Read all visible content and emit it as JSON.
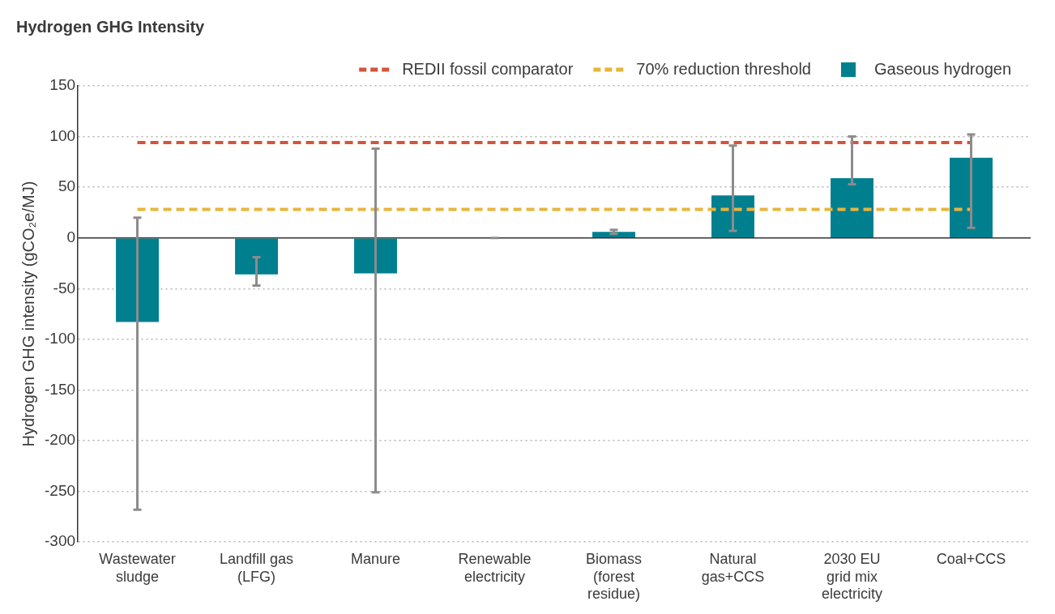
{
  "chart_data": {
    "type": "bar",
    "title": "Hydrogen GHG Intensity",
    "y_label": "Hydrogen GHG intensity (gCO₂e/MJ)",
    "categories": [
      [
        "Wastewater",
        "sludge"
      ],
      [
        "Landfill gas",
        "(LFG)"
      ],
      [
        "Manure"
      ],
      [
        "Renewable",
        "electricity"
      ],
      [
        "Biomass",
        "(forest",
        "residue)"
      ],
      [
        "Natural",
        "gas+CCS"
      ],
      [
        "2030 EU",
        "grid mix",
        "electricity"
      ],
      [
        "Coal+CCS"
      ]
    ],
    "series": [
      {
        "name": "Gaseous hydrogen",
        "type": "bar",
        "color": "#007f8f",
        "values": [
          -83,
          -36,
          -35,
          0,
          6,
          42,
          59,
          79
        ],
        "error_low": [
          -268,
          -47,
          -251,
          0,
          4,
          7,
          53,
          10
        ],
        "error_high": [
          20,
          -19,
          88,
          0,
          8,
          91,
          100,
          102
        ]
      },
      {
        "name": "REDII fossil comparator",
        "type": "line",
        "color": "#d4553a",
        "line_style": "dashed",
        "values": [
          94,
          94,
          94,
          94,
          94,
          94,
          94,
          94
        ]
      },
      {
        "name": "70% reduction threshold",
        "type": "line",
        "color": "#e8b53c",
        "line_style": "dashed",
        "values": [
          28.2,
          28.2,
          28.2,
          28.2,
          28.2,
          28.2,
          28.2,
          28.2
        ]
      }
    ],
    "ylim": [
      -300,
      150
    ],
    "yticks": [
      -300,
      -250,
      -200,
      -150,
      -100,
      -50,
      0,
      50,
      100,
      150
    ],
    "grid": true,
    "legend": "top"
  }
}
